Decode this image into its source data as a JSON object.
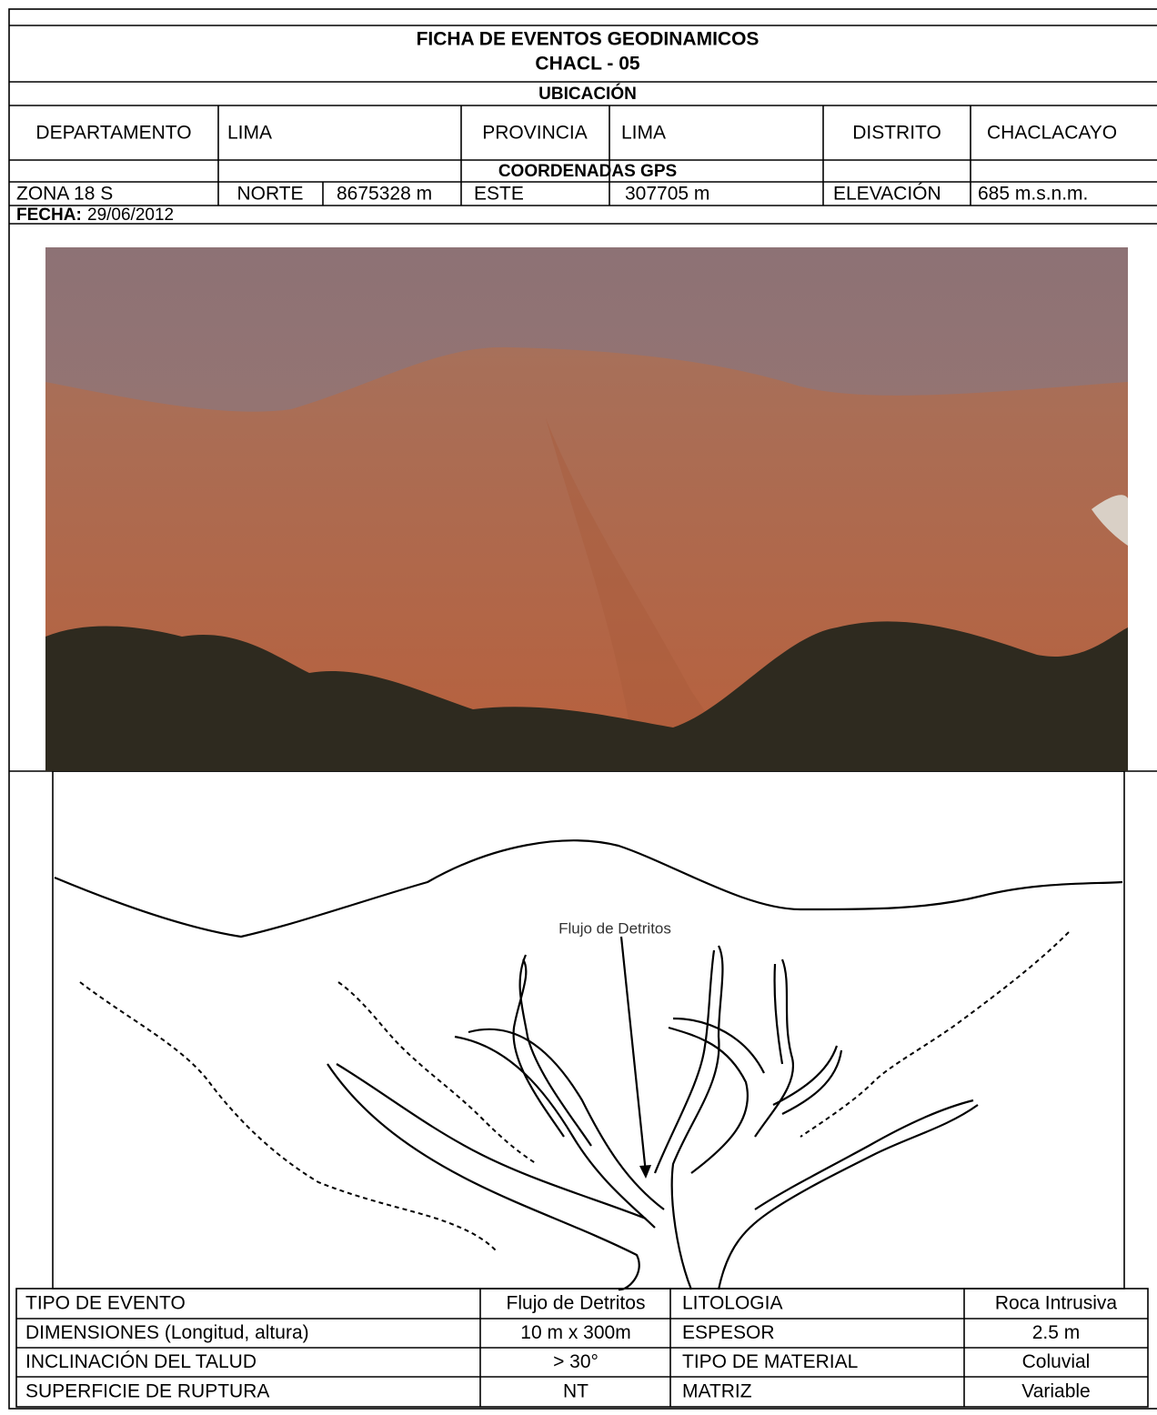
{
  "title": "FICHA DE EVENTOS GEODINAMICOS",
  "code": "CHACL - 05",
  "location": {
    "heading": "UBICACIÓN",
    "row": [
      "DEPARTAMENTO",
      "LIMA",
      "PROVINCIA",
      "LIMA",
      "DISTRITO",
      "CHACLACAYO"
    ]
  },
  "coordinates": {
    "heading": "COORDENADAS GPS",
    "row": [
      "ZONA 18 S",
      "NORTE",
      "8675328 m",
      "ESTE",
      "307705 m",
      "ELEVACIÓN",
      "685 m.s.n.m."
    ]
  },
  "date": {
    "label": "FECHA:",
    "value": "29/06/2012"
  },
  "sketch": {
    "label": "Flujo de Detritos"
  },
  "details": {
    "rows": [
      [
        "TIPO DE EVENTO",
        "Flujo de Detritos",
        "LITOLOGIA",
        "Roca Intrusiva"
      ],
      [
        "DIMENSIONES (Longitud, altura)",
        "10 m x 300m",
        "ESPESOR",
        "2.5 m"
      ],
      [
        "INCLINACIÓN DEL TALUD",
        "> 30°",
        "TIPO DE MATERIAL",
        "Coluvial"
      ],
      [
        "SUPERFICIE DE RUPTURA",
        "NT",
        "MATRIZ",
        "Variable"
      ]
    ]
  }
}
